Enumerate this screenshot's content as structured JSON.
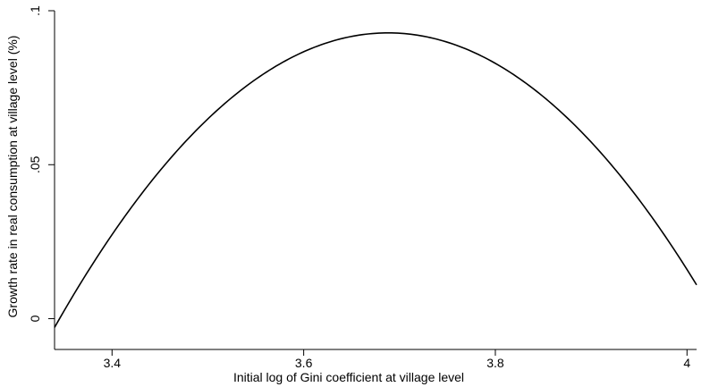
{
  "chart_data": {
    "type": "line",
    "title": "",
    "xlabel": "Initial log of Gini coefficient at village level",
    "ylabel": "Growth rate in real consumption at village level (%)",
    "xlim": [
      3.34,
      4.01
    ],
    "ylim": [
      -0.01,
      0.1
    ],
    "xticks": [
      3.4,
      3.6,
      3.8,
      4.0
    ],
    "xtick_labels": [
      "3.4",
      "3.6",
      "3.8",
      "4"
    ],
    "yticks": [
      0,
      0.05,
      0.1
    ],
    "ytick_labels": [
      "0",
      ".05",
      ".1"
    ],
    "grid": false,
    "legend": "none",
    "series": [
      {
        "x": [
          3.34,
          3.38,
          3.42,
          3.46,
          3.5,
          3.54,
          3.58,
          3.62,
          3.66,
          3.7,
          3.74,
          3.78,
          3.82,
          3.86,
          3.9,
          3.94,
          3.98,
          4.01
        ],
        "y": [
          -0.0095,
          0.016,
          0.0371,
          0.0546,
          0.0687,
          0.0794,
          0.087,
          0.0915,
          0.0931,
          0.093,
          0.0901,
          0.0844,
          0.0758,
          0.0644,
          0.0502,
          0.0333,
          0.033,
          0.0205
        ],
        "color": "#000000"
      }
    ]
  }
}
